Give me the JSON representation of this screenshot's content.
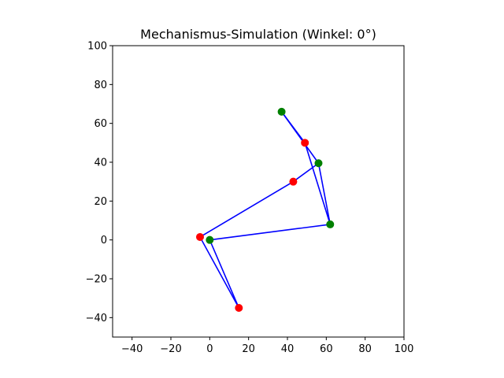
{
  "chart_data": {
    "type": "scatter",
    "title": "Mechanismus-Simulation (Winkel: 0°)",
    "xlabel": "",
    "ylabel": "",
    "xlim": [
      -50,
      100
    ],
    "ylim": [
      -50,
      100
    ],
    "x_ticks": [
      -40,
      -20,
      0,
      20,
      40,
      60,
      80,
      100
    ],
    "y_ticks": [
      -40,
      -20,
      0,
      20,
      40,
      60,
      80,
      100
    ],
    "x_tick_labels": [
      "−40",
      "−20",
      "0",
      "20",
      "40",
      "60",
      "80",
      "100"
    ],
    "y_tick_labels": [
      "−40",
      "−20",
      "0",
      "20",
      "40",
      "60",
      "80",
      "100"
    ],
    "grid": false,
    "aspect": "equal",
    "link_color": "#0000ff",
    "links": [
      {
        "from": [
          -5,
          1.5
        ],
        "to": [
          15,
          -35
        ]
      },
      {
        "from": [
          15,
          -35
        ],
        "to": [
          0,
          0
        ]
      },
      {
        "from": [
          0,
          0
        ],
        "to": [
          62,
          8
        ]
      },
      {
        "from": [
          62,
          8
        ],
        "to": [
          56,
          39.5
        ]
      },
      {
        "from": [
          56,
          39.5
        ],
        "to": [
          37,
          66
        ]
      },
      {
        "from": [
          37,
          66
        ],
        "to": [
          49,
          50
        ]
      },
      {
        "from": [
          49,
          50
        ],
        "to": [
          62,
          8
        ]
      },
      {
        "from": [
          56,
          39.5
        ],
        "to": [
          43,
          30
        ]
      },
      {
        "from": [
          43,
          30
        ],
        "to": [
          -5,
          1.5
        ]
      }
    ],
    "series": [
      {
        "color": "#008000",
        "points": [
          {
            "x": 0,
            "y": 0
          },
          {
            "x": 62,
            "y": 8
          },
          {
            "x": 56,
            "y": 39.5
          },
          {
            "x": 37,
            "y": 66
          }
        ]
      },
      {
        "color": "#ff0000",
        "points": [
          {
            "x": -5,
            "y": 1.5
          },
          {
            "x": 15,
            "y": -35
          },
          {
            "x": 43,
            "y": 30
          },
          {
            "x": 49,
            "y": 50
          }
        ]
      }
    ]
  }
}
